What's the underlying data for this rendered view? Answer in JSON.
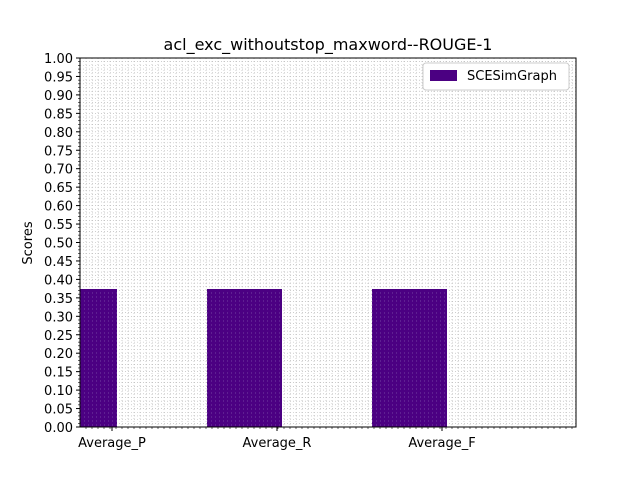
{
  "chart_data": {
    "type": "bar",
    "title": "acl_exc_withoutstop_maxword--ROUGE-1",
    "xlabel": "",
    "ylabel": "Scores",
    "categories": [
      "Average_P",
      "Average_R",
      "Average_F"
    ],
    "series": [
      {
        "name": "SCESimGraph",
        "values": [
          0.374,
          0.374,
          0.374
        ],
        "color": "#4b0082"
      }
    ],
    "ylim": [
      0,
      1.0
    ],
    "yticks": [
      "0.00",
      "0.05",
      "0.10",
      "0.15",
      "0.20",
      "0.25",
      "0.30",
      "0.35",
      "0.40",
      "0.45",
      "0.50",
      "0.55",
      "0.60",
      "0.65",
      "0.70",
      "0.75",
      "0.80",
      "0.85",
      "0.90",
      "0.95",
      "1.00"
    ],
    "grid": true,
    "legend_position": "top-right"
  }
}
